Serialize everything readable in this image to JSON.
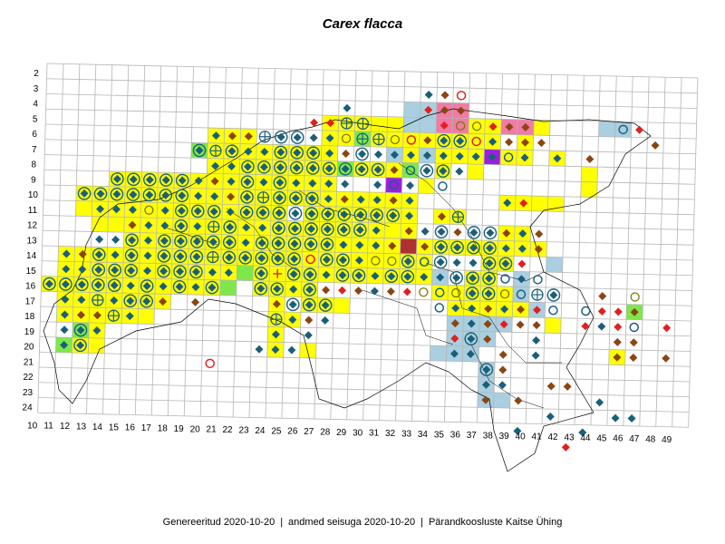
{
  "map": {
    "title": "Carex flacca",
    "x_labels": [
      "10",
      "11",
      "12",
      "13",
      "14",
      "15",
      "16",
      "17",
      "18",
      "19",
      "20",
      "21",
      "22",
      "23",
      "24",
      "25",
      "26",
      "27",
      "28",
      "29",
      "30",
      "31",
      "32",
      "33",
      "34",
      "35",
      "36",
      "37",
      "38",
      "39",
      "40",
      "41",
      "42",
      "43",
      "44",
      "45",
      "46",
      "47",
      "48",
      "49"
    ],
    "y_labels": [
      "2",
      "3",
      "4",
      "5",
      "6",
      "7",
      "8",
      "9",
      "10",
      "11",
      "12",
      "13",
      "14",
      "15",
      "16",
      "17",
      "18",
      "19",
      "20",
      "21",
      "22",
      "23",
      "24"
    ],
    "colors": {
      "grid": "#b5b5b5",
      "yellow": "#ffff00",
      "green": "#7ee84a",
      "blue": "#a9cfe0",
      "pink": "#f27aa5",
      "purple": "#9b1fe0",
      "teal": "#1a5f7a",
      "brown": "#8b4513",
      "red": "#e02020",
      "dark_red": "#b03030",
      "outline": "#000000"
    },
    "symbol_names": [
      "ring-diamond-icon",
      "diamond-icon",
      "brown-diamond-icon",
      "red-diamond-icon",
      "red-circle-icon",
      "teal-circle-icon",
      "yellow-circle-icon",
      "crosshair-icon",
      "red-cross-icon"
    ]
  },
  "footer": {
    "generated": "Genereeritud 2020-10-20",
    "data_state": "andmed seisuga 2020-10-20",
    "org": "Pärandkoosluste Kaitse Ühing",
    "separator": "|"
  }
}
